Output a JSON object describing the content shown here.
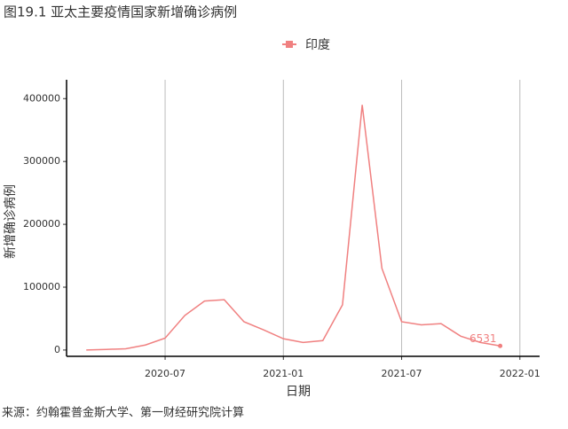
{
  "chart_data": {
    "type": "line",
    "title": "图19.1 亚太主要疫情国家新增确诊病例",
    "x_label": "日期",
    "y_label": "新增确诊病例",
    "source": "来源：约翰霍普金斯大学、第一财经研究院计算",
    "x": [
      "2020-03",
      "2020-04",
      "2020-05",
      "2020-06",
      "2020-07",
      "2020-08",
      "2020-09",
      "2020-10",
      "2020-11",
      "2020-12",
      "2021-01",
      "2021-02",
      "2021-03",
      "2021-04",
      "2021-05",
      "2021-06",
      "2021-07",
      "2021-08",
      "2021-09",
      "2021-10",
      "2021-11",
      "2021-12"
    ],
    "series": [
      {
        "name": "印度",
        "color": "#f08080",
        "values": [
          0,
          1000,
          2000,
          8000,
          19000,
          55000,
          78000,
          80000,
          45000,
          32000,
          18000,
          12000,
          15000,
          72000,
          390000,
          130000,
          45000,
          40000,
          42000,
          22000,
          12000,
          6531
        ]
      }
    ],
    "xlim": [
      "2020-02",
      "2022-02"
    ],
    "xticks": [
      "2020-07",
      "2021-01",
      "2021-07",
      "2022-01"
    ],
    "ylim": [
      -10000,
      430000
    ],
    "yticks": [
      0,
      100000,
      200000,
      300000,
      400000
    ],
    "grid": "x",
    "legend": "top"
  }
}
